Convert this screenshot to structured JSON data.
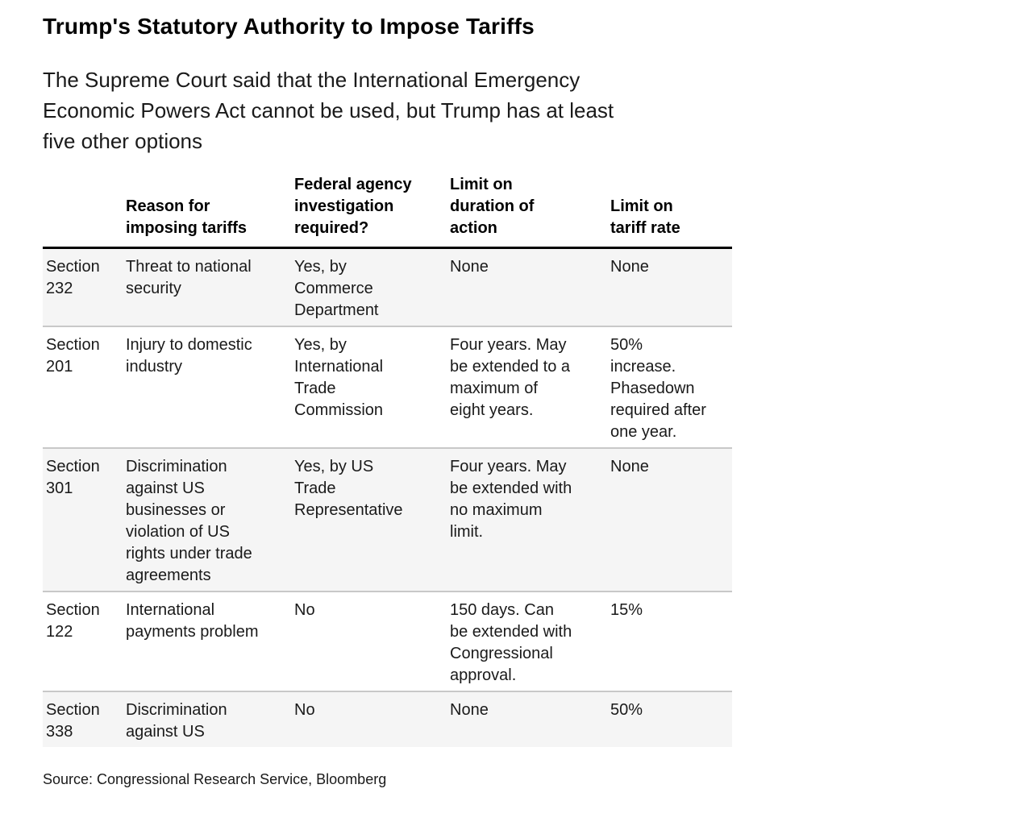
{
  "chart_data": {
    "type": "table",
    "title": "Trump's Statutory Authority to Impose Tariffs",
    "subtitle": "The Supreme Court said that the International Emergency Economic Powers Act cannot be used, but Trump has at least five other options",
    "columns": [
      "",
      "Reason for imposing tariffs",
      "Federal agency investigation required?",
      "Limit on duration of action",
      "Limit on tariff rate"
    ],
    "rows": [
      [
        "Section 232",
        "Threat to national security",
        "Yes, by Commerce Department",
        "None",
        "None"
      ],
      [
        "Section 201",
        "Injury to domestic industry",
        "Yes, by International Trade Commission",
        "Four years. May be extended to a maximum of eight years.",
        "50% increase. Phasedown required after one year."
      ],
      [
        "Section 301",
        "Discrimination against US businesses or violation of US rights under trade agreements",
        "Yes, by US Trade Representative",
        "Four years. May be extended with no maximum limit.",
        "None"
      ],
      [
        "Section 122",
        "International payments problem",
        "No",
        "150 days. Can be extended with Congressional approval.",
        "15%"
      ],
      [
        "Section 338",
        "Discrimination against US",
        "No",
        "None",
        "50%"
      ]
    ],
    "source": "Source: Congressional Research Service, Bloomberg",
    "layout": {
      "striped_rows": "odd",
      "header_rule": true,
      "grid": "horizontal-separators-only",
      "legend": "none"
    }
  },
  "colors": {
    "stripe": "#f5f5f5",
    "rule": "#000000",
    "separator": "#c8c8c8",
    "text": "#1a1a1a",
    "title": "#000000"
  }
}
